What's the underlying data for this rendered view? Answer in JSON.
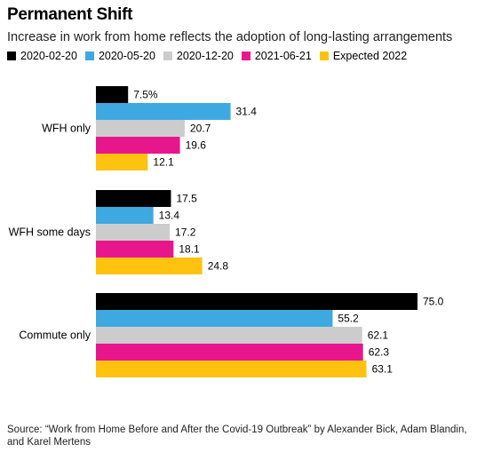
{
  "title": "Permanent Shift",
  "subtitle": "Increase in work from home reflects the adoption of long-lasting arrangements",
  "source": "Source: “Work from Home Before and After the Covid-19 Outbreak” by Alexander Bick, Adam Blandin, and Karel Mertens",
  "chart_data": {
    "type": "bar",
    "orientation": "horizontal",
    "categories": [
      "WFH only",
      "WFH some days",
      "Commute only"
    ],
    "series": [
      {
        "name": "2020-02-20",
        "color": "#000000",
        "values": [
          7.5,
          17.5,
          75.0
        ],
        "labels": [
          "7.5%",
          "17.5",
          "75.0"
        ]
      },
      {
        "name": "2020-05-20",
        "color": "#3ea8e1",
        "values": [
          31.4,
          13.4,
          55.2
        ],
        "labels": [
          "31.4",
          "13.4",
          "55.2"
        ]
      },
      {
        "name": "2020-12-20",
        "color": "#cccccc",
        "values": [
          20.7,
          17.2,
          62.1
        ],
        "labels": [
          "20.7",
          "17.2",
          "62.1"
        ]
      },
      {
        "name": "2021-06-21",
        "color": "#e8168c",
        "values": [
          19.6,
          18.1,
          62.3
        ],
        "labels": [
          "19.6",
          "18.1",
          "62.3"
        ]
      },
      {
        "name": "Expected 2022",
        "color": "#ffc20e",
        "values": [
          12.1,
          24.8,
          63.1
        ],
        "labels": [
          "12.1",
          "24.8",
          "63.1"
        ]
      }
    ],
    "xlim": [
      0,
      75
    ],
    "legend_position": "top",
    "grid": false
  }
}
